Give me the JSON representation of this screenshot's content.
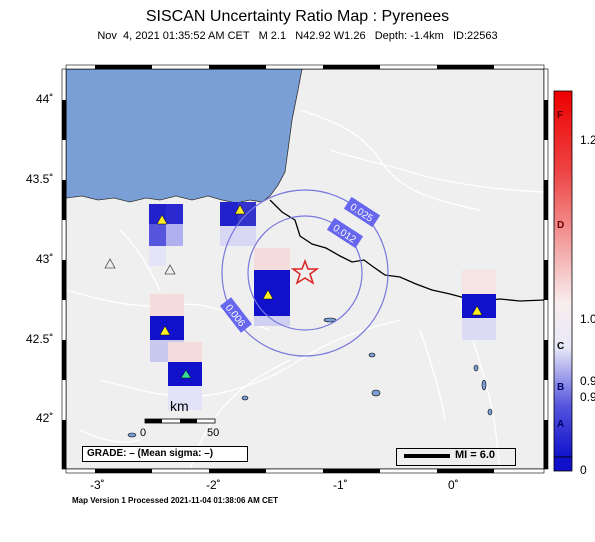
{
  "header": {
    "title": "SISCAN Uncertainty Ratio Map : Pyrenees",
    "subtitle": "Nov  4, 2021 01:35:52 AM CET   M 2.1   N42.92 W1.26   Depth: -1.4km   ID:22563"
  },
  "axes": {
    "lat_labels": [
      "44˚",
      "43.5˚",
      "43˚",
      "42.5˚",
      "42˚"
    ],
    "lon_labels": [
      "-3˚",
      "-2˚",
      "-1˚",
      "0˚"
    ]
  },
  "contours": {
    "labels": [
      "0.025",
      "0.012",
      "0.006"
    ]
  },
  "scale_bar": {
    "unit": "km",
    "ticks": [
      "0",
      "50"
    ]
  },
  "grade_box": {
    "text": "GRADE: – (Mean sigma: –)"
  },
  "mi_legend": {
    "text": "MI = 6.0"
  },
  "colorbar": {
    "letters": [
      "F",
      "D",
      "C",
      "B",
      "A"
    ],
    "values": [
      "1.2",
      "1.0",
      "0.9",
      "0.9",
      "0"
    ]
  },
  "footer": {
    "text": "Map Version 1 Processed 2021-11-04 01:38:06 AM CET"
  },
  "colors": {
    "sea": "#7a9fd6",
    "land": "#efefef",
    "border": "#000000",
    "contour": "#7777dd",
    "epicenter": "#dd2222"
  }
}
